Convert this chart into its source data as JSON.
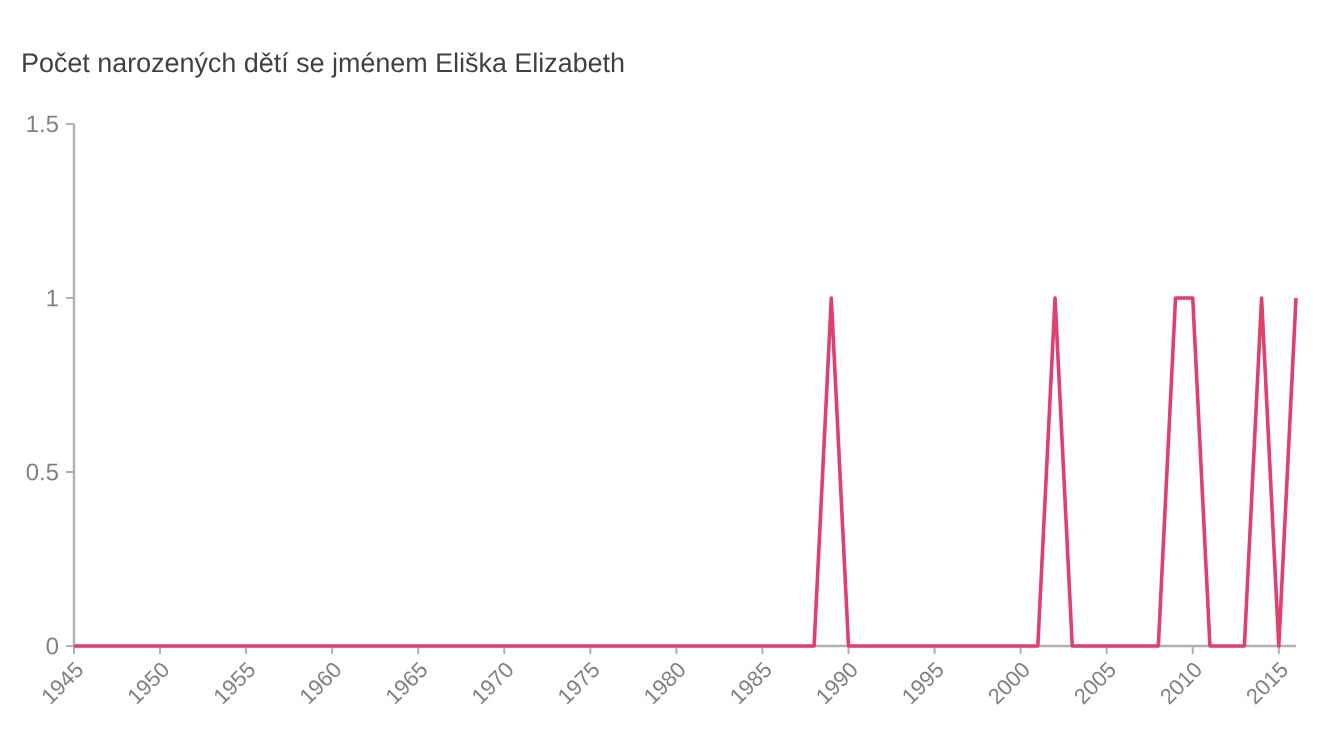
{
  "chart_data": {
    "type": "line",
    "title": "Počet narozených dětí se jménem Eliška Elizabeth",
    "x": [
      1945,
      1988,
      1989,
      1990,
      2001,
      2002,
      2003,
      2008,
      2009,
      2010,
      2011,
      2013,
      2014,
      2015,
      2016
    ],
    "values": [
      0,
      0,
      1,
      0,
      0,
      1,
      0,
      0,
      1,
      1,
      0,
      0,
      1,
      0,
      1
    ],
    "color": "#e0406e",
    "xlim": [
      1945,
      2016
    ],
    "ylim": [
      0,
      1.5
    ],
    "xticks": [
      1945,
      1950,
      1955,
      1960,
      1965,
      1970,
      1975,
      1980,
      1985,
      1990,
      1995,
      2000,
      2005,
      2010,
      2015
    ],
    "yticks": [
      0,
      0.5,
      1,
      1.5
    ],
    "grid": false,
    "marker": "none",
    "line_style": "solid"
  }
}
